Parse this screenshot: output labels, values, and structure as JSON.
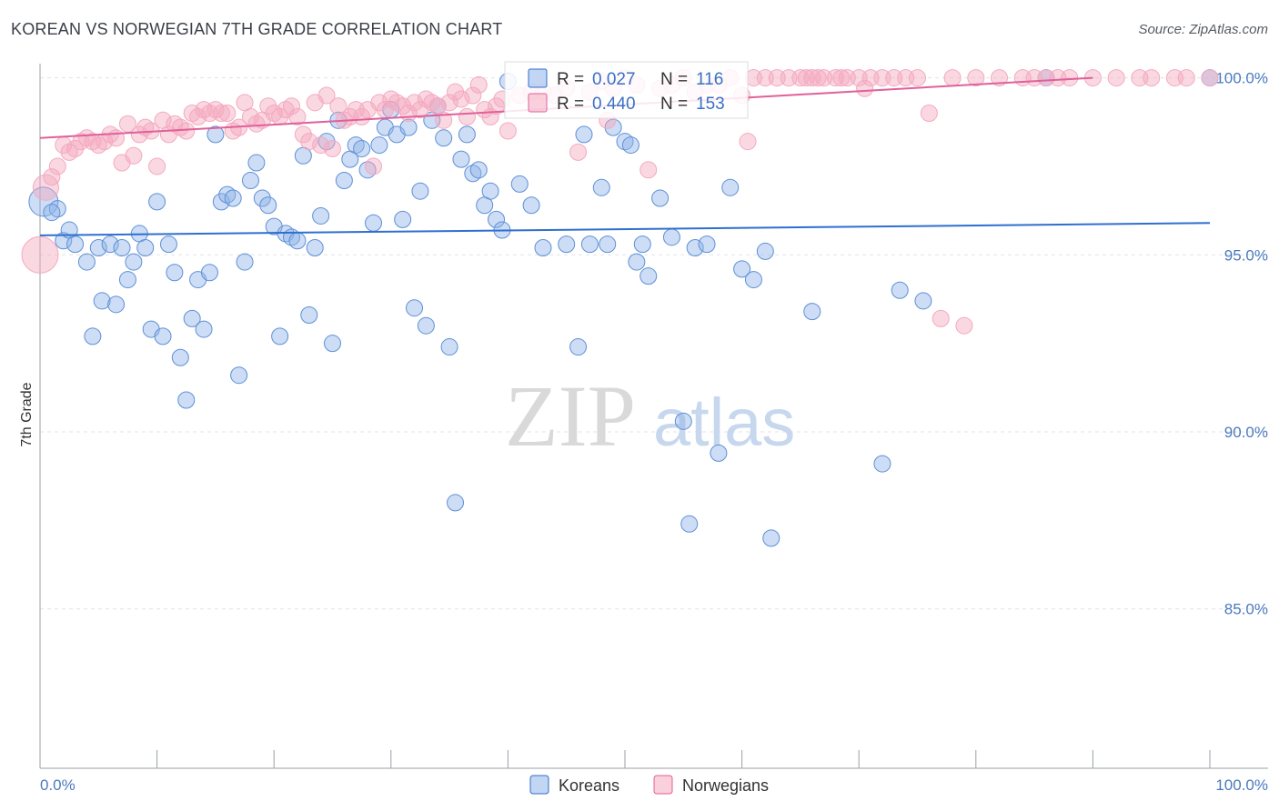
{
  "title": "KOREAN VS NORWEGIAN 7TH GRADE CORRELATION CHART",
  "source": "Source: ZipAtlas.com",
  "watermark": {
    "zip": "ZIP",
    "atlas": "atlas"
  },
  "chart_data": {
    "type": "scatter",
    "ylabel": "7th Grade",
    "xlim": [
      0,
      100
    ],
    "ylim": [
      80.5,
      100.4
    ],
    "x_tick_labels": [
      "0.0%",
      "100.0%"
    ],
    "y_ticks": [
      85,
      90,
      95,
      100
    ],
    "y_tick_labels": [
      "85.0%",
      "90.0%",
      "95.0%",
      "100.0%"
    ],
    "grid": "horizontal dashed",
    "legend": {
      "position": "top-center",
      "entries": [
        {
          "r_label": "R =",
          "r_value": "0.027",
          "n_label": "N =",
          "n_value": "116"
        },
        {
          "r_label": "R =",
          "r_value": "0.440",
          "n_label": "N =",
          "n_value": "153"
        }
      ]
    },
    "series": [
      {
        "name": "Koreans",
        "color": "#8fb3e8",
        "line_color": "#2f6fd0",
        "trend": [
          [
            0,
            95.55
          ],
          [
            100,
            95.9
          ]
        ],
        "points": [
          [
            0.3,
            96.5
          ],
          [
            1.5,
            96.3
          ],
          [
            1,
            96.2
          ],
          [
            2,
            95.4
          ],
          [
            2.5,
            95.7
          ],
          [
            3,
            95.3
          ],
          [
            4,
            94.8
          ],
          [
            4.5,
            92.7
          ],
          [
            5,
            95.2
          ],
          [
            5.3,
            93.7
          ],
          [
            6,
            95.3
          ],
          [
            6.5,
            93.6
          ],
          [
            7,
            95.2
          ],
          [
            7.5,
            94.3
          ],
          [
            8,
            94.8
          ],
          [
            8.5,
            95.6
          ],
          [
            9,
            95.2
          ],
          [
            9.5,
            92.9
          ],
          [
            10,
            96.5
          ],
          [
            10.5,
            92.7
          ],
          [
            11,
            95.3
          ],
          [
            11.5,
            94.5
          ],
          [
            12,
            92.1
          ],
          [
            12.5,
            90.9
          ],
          [
            13,
            93.2
          ],
          [
            13.5,
            94.3
          ],
          [
            14,
            92.9
          ],
          [
            14.5,
            94.5
          ],
          [
            15,
            98.4
          ],
          [
            15.5,
            96.5
          ],
          [
            16,
            96.7
          ],
          [
            16.5,
            96.6
          ],
          [
            17,
            91.6
          ],
          [
            17.5,
            94.8
          ],
          [
            18,
            97.1
          ],
          [
            18.5,
            97.6
          ],
          [
            19,
            96.6
          ],
          [
            19.5,
            96.4
          ],
          [
            20,
            95.8
          ],
          [
            20.5,
            92.7
          ],
          [
            21,
            95.6
          ],
          [
            21.5,
            95.5
          ],
          [
            22,
            95.4
          ],
          [
            22.5,
            97.8
          ],
          [
            23,
            93.3
          ],
          [
            23.5,
            95.2
          ],
          [
            24,
            96.1
          ],
          [
            24.5,
            98.2
          ],
          [
            25,
            92.5
          ],
          [
            25.5,
            98.8
          ],
          [
            26,
            97.1
          ],
          [
            26.5,
            97.7
          ],
          [
            27,
            98.1
          ],
          [
            27.5,
            98.0
          ],
          [
            28,
            97.4
          ],
          [
            28.5,
            95.9
          ],
          [
            29,
            98.1
          ],
          [
            29.5,
            98.6
          ],
          [
            30,
            99.1
          ],
          [
            30.5,
            98.4
          ],
          [
            31,
            96.0
          ],
          [
            31.5,
            98.6
          ],
          [
            32,
            93.5
          ],
          [
            32.5,
            96.8
          ],
          [
            33,
            93.0
          ],
          [
            33.5,
            98.8
          ],
          [
            34,
            99.2
          ],
          [
            34.5,
            98.3
          ],
          [
            35,
            92.4
          ],
          [
            35.5,
            88.0
          ],
          [
            36,
            97.7
          ],
          [
            36.5,
            98.4
          ],
          [
            37,
            97.3
          ],
          [
            37.5,
            97.4
          ],
          [
            38,
            96.4
          ],
          [
            38.5,
            96.8
          ],
          [
            39,
            96.0
          ],
          [
            39.5,
            95.7
          ],
          [
            40,
            99.9
          ],
          [
            41,
            97.0
          ],
          [
            42,
            96.4
          ],
          [
            43,
            95.2
          ],
          [
            45,
            95.3
          ],
          [
            46,
            92.4
          ],
          [
            46.5,
            98.4
          ],
          [
            47,
            95.3
          ],
          [
            48,
            96.9
          ],
          [
            48.5,
            95.3
          ],
          [
            49,
            98.6
          ],
          [
            50,
            98.2
          ],
          [
            50.5,
            98.1
          ],
          [
            51,
            94.8
          ],
          [
            51.5,
            95.3
          ],
          [
            52,
            94.4
          ],
          [
            53,
            96.6
          ],
          [
            54,
            95.5
          ],
          [
            55,
            90.3
          ],
          [
            55.5,
            87.4
          ],
          [
            56,
            95.2
          ],
          [
            57,
            95.3
          ],
          [
            58,
            89.4
          ],
          [
            59,
            96.9
          ],
          [
            60,
            94.6
          ],
          [
            61,
            94.3
          ],
          [
            62,
            95.1
          ],
          [
            62.5,
            87.0
          ],
          [
            66,
            93.4
          ],
          [
            72,
            89.1
          ],
          [
            73.5,
            94.0
          ],
          [
            75.5,
            93.7
          ],
          [
            86,
            100.0
          ],
          [
            100,
            100.0
          ]
        ]
      },
      {
        "name": "Norwegians",
        "color": "#f4a9bf",
        "line_color": "#e0609a",
        "trend": [
          [
            0,
            98.3
          ],
          [
            90,
            100.0
          ]
        ],
        "points": [
          [
            0,
            95.0
          ],
          [
            0.5,
            96.9
          ],
          [
            1,
            97.2
          ],
          [
            1.5,
            97.5
          ],
          [
            2,
            98.1
          ],
          [
            2.5,
            97.9
          ],
          [
            3,
            98.0
          ],
          [
            3.5,
            98.2
          ],
          [
            4,
            98.3
          ],
          [
            4.5,
            98.2
          ],
          [
            5,
            98.1
          ],
          [
            5.5,
            98.2
          ],
          [
            6,
            98.4
          ],
          [
            6.5,
            98.3
          ],
          [
            7,
            97.6
          ],
          [
            7.5,
            98.7
          ],
          [
            8,
            97.8
          ],
          [
            8.5,
            98.4
          ],
          [
            9,
            98.6
          ],
          [
            9.5,
            98.5
          ],
          [
            10,
            97.5
          ],
          [
            10.5,
            98.8
          ],
          [
            11,
            98.4
          ],
          [
            11.5,
            98.7
          ],
          [
            12,
            98.6
          ],
          [
            12.5,
            98.5
          ],
          [
            13,
            99.0
          ],
          [
            13.5,
            98.9
          ],
          [
            14,
            99.1
          ],
          [
            14.5,
            99.0
          ],
          [
            15,
            99.1
          ],
          [
            15.5,
            99.0
          ],
          [
            16,
            99.0
          ],
          [
            16.5,
            98.5
          ],
          [
            17,
            98.6
          ],
          [
            17.5,
            99.3
          ],
          [
            18,
            98.9
          ],
          [
            18.5,
            98.7
          ],
          [
            19,
            98.8
          ],
          [
            19.5,
            99.2
          ],
          [
            20,
            99.0
          ],
          [
            20.5,
            98.9
          ],
          [
            21,
            99.1
          ],
          [
            21.5,
            99.2
          ],
          [
            22,
            98.9
          ],
          [
            22.5,
            98.4
          ],
          [
            23,
            98.2
          ],
          [
            23.5,
            99.3
          ],
          [
            24,
            98.1
          ],
          [
            24.5,
            99.5
          ],
          [
            25,
            98.0
          ],
          [
            25.5,
            99.2
          ],
          [
            26,
            98.8
          ],
          [
            26.5,
            98.9
          ],
          [
            27,
            99.1
          ],
          [
            27.5,
            98.9
          ],
          [
            28,
            99.1
          ],
          [
            28.5,
            97.5
          ],
          [
            29,
            99.3
          ],
          [
            29.5,
            99.1
          ],
          [
            30,
            99.4
          ],
          [
            30.5,
            99.3
          ],
          [
            31,
            99.2
          ],
          [
            31.5,
            99.0
          ],
          [
            32,
            99.3
          ],
          [
            32.5,
            99.1
          ],
          [
            33,
            99.4
          ],
          [
            33.5,
            99.3
          ],
          [
            34,
            99.2
          ],
          [
            34.5,
            98.8
          ],
          [
            35,
            99.3
          ],
          [
            35.5,
            99.6
          ],
          [
            36,
            99.4
          ],
          [
            36.5,
            98.9
          ],
          [
            37,
            99.5
          ],
          [
            37.5,
            99.8
          ],
          [
            38,
            99.1
          ],
          [
            38.5,
            98.9
          ],
          [
            39,
            99.2
          ],
          [
            39.5,
            99.4
          ],
          [
            40,
            98.5
          ],
          [
            41,
            99.5
          ],
          [
            42,
            99.6
          ],
          [
            43,
            99.6
          ],
          [
            44,
            99.5
          ],
          [
            45,
            99.7
          ],
          [
            46,
            97.9
          ],
          [
            47,
            99.6
          ],
          [
            48,
            99.9
          ],
          [
            48.5,
            98.8
          ],
          [
            49,
            99.7
          ],
          [
            50,
            100.0
          ],
          [
            51,
            99.8
          ],
          [
            52,
            97.4
          ],
          [
            53,
            99.7
          ],
          [
            54,
            99.8
          ],
          [
            55,
            100.0
          ],
          [
            56,
            99.6
          ],
          [
            57,
            99.8
          ],
          [
            58,
            99.8
          ],
          [
            59,
            100.0
          ],
          [
            60,
            99.5
          ],
          [
            60.5,
            98.2
          ],
          [
            61,
            100.0
          ],
          [
            62,
            100.0
          ],
          [
            63,
            100.0
          ],
          [
            64,
            100.0
          ],
          [
            65,
            100.0
          ],
          [
            65.5,
            100.0
          ],
          [
            66,
            100.0
          ],
          [
            66.5,
            100.0
          ],
          [
            67,
            100.0
          ],
          [
            68,
            100.0
          ],
          [
            68.5,
            100.0
          ],
          [
            69,
            100.0
          ],
          [
            70,
            100.0
          ],
          [
            70.5,
            99.7
          ],
          [
            71,
            100.0
          ],
          [
            72,
            100.0
          ],
          [
            73,
            100.0
          ],
          [
            74,
            100.0
          ],
          [
            75,
            100.0
          ],
          [
            76,
            99.0
          ],
          [
            77,
            93.2
          ],
          [
            78,
            100.0
          ],
          [
            79,
            93.0
          ],
          [
            80,
            100.0
          ],
          [
            82,
            100.0
          ],
          [
            84,
            100.0
          ],
          [
            85,
            100.0
          ],
          [
            86,
            100.0
          ],
          [
            87,
            100.0
          ],
          [
            88,
            100.0
          ],
          [
            90,
            100.0
          ],
          [
            92,
            100.0
          ],
          [
            94,
            100.0
          ],
          [
            95,
            100.0
          ],
          [
            97,
            100.0
          ],
          [
            98,
            100.0
          ],
          [
            100,
            100.0
          ]
        ]
      }
    ]
  }
}
